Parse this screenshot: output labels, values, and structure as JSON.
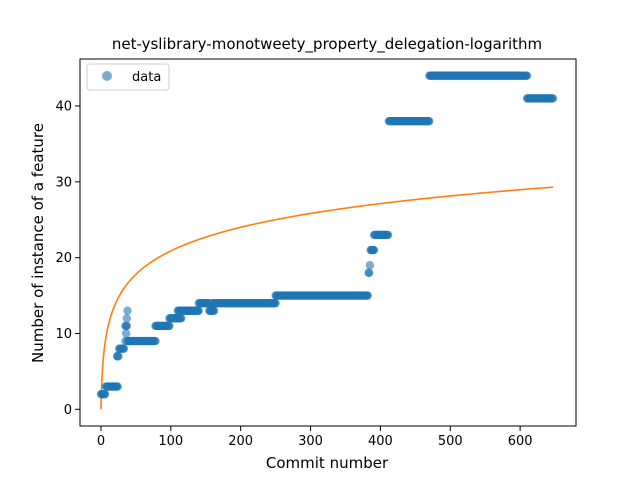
{
  "chart_data": {
    "type": "scatter",
    "title": "net-yslibrary-monotweety_property_delegation-logarithm",
    "xlabel": "Commit number",
    "ylabel": "Number of instance of a feature",
    "xlim": [
      -30,
      680
    ],
    "ylim": [
      -2.2,
      46.2
    ],
    "xticks": [
      0,
      100,
      200,
      300,
      400,
      500,
      600
    ],
    "yticks": [
      0,
      10,
      20,
      30,
      40
    ],
    "legend": {
      "placement": "top-left",
      "entries": [
        "data"
      ]
    },
    "colors": {
      "data": "#1f77b4",
      "fit": "#ff7f0e"
    },
    "series": [
      {
        "name": "data",
        "kind": "scatter",
        "segments": [
          {
            "x_start": 0,
            "x_end": 6,
            "y": 2
          },
          {
            "x_start": 7,
            "x_end": 24,
            "y": 3
          },
          {
            "x_start": 23,
            "x_end": 25,
            "y": 7
          },
          {
            "x_start": 26,
            "x_end": 33,
            "y": 8
          },
          {
            "x_start": 35,
            "x_end": 35,
            "y": 9
          },
          {
            "x_start": 36,
            "x_end": 36,
            "y": 10
          },
          {
            "x_start": 35,
            "x_end": 37,
            "y": 11
          },
          {
            "x_start": 37,
            "x_end": 37,
            "y": 12
          },
          {
            "x_start": 38,
            "x_end": 38,
            "y": 13
          },
          {
            "x_start": 38,
            "x_end": 78,
            "y": 9
          },
          {
            "x_start": 78,
            "x_end": 98,
            "y": 11
          },
          {
            "x_start": 98,
            "x_end": 108,
            "y": 12
          },
          {
            "x_start": 108,
            "x_end": 115,
            "y": 12
          },
          {
            "x_start": 110,
            "x_end": 140,
            "y": 13
          },
          {
            "x_start": 140,
            "x_end": 155,
            "y": 14
          },
          {
            "x_start": 155,
            "x_end": 162,
            "y": 13
          },
          {
            "x_start": 160,
            "x_end": 250,
            "y": 14
          },
          {
            "x_start": 250,
            "x_end": 382,
            "y": 15
          },
          {
            "x_start": 383,
            "x_end": 384,
            "y": 18
          },
          {
            "x_start": 385,
            "x_end": 385,
            "y": 19
          },
          {
            "x_start": 386,
            "x_end": 391,
            "y": 21
          },
          {
            "x_start": 391,
            "x_end": 411,
            "y": 23
          },
          {
            "x_start": 412,
            "x_end": 470,
            "y": 38
          },
          {
            "x_start": 470,
            "x_end": 610,
            "y": 44
          },
          {
            "x_start": 610,
            "x_end": 647,
            "y": 41
          }
        ]
      },
      {
        "name": "fit",
        "kind": "line",
        "x_range": [
          0,
          647
        ],
        "y_at_start": 0,
        "y_at_end": 29.3
      }
    ]
  }
}
